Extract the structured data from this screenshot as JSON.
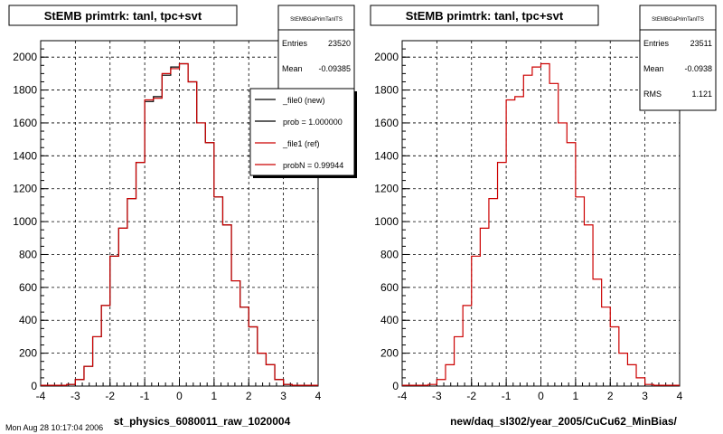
{
  "footer_text": "Mon Aug 28 10:17:04 2006",
  "chart_data": [
    {
      "type": "bar",
      "title": "StEMB primtrk: tanl, tpc+svt",
      "xlabel": "st_physics_6080011_raw_1020004",
      "ylabel": "",
      "xlim": [
        -4,
        4
      ],
      "ylim": [
        0,
        2100
      ],
      "grid": true,
      "bin_width": 0.25,
      "bin_edges_start": -4,
      "xticks": [
        "-4",
        "-3",
        "-2",
        "-1",
        "0",
        "1",
        "2",
        "3",
        "4"
      ],
      "yticks": [
        "0",
        "200",
        "400",
        "600",
        "800",
        "1000",
        "1200",
        "1400",
        "1600",
        "1800",
        "2000"
      ],
      "series": [
        {
          "name": "_file0 (new)",
          "color": "#000000",
          "values": [
            5,
            5,
            5,
            10,
            40,
            120,
            300,
            490,
            790,
            960,
            1140,
            1360,
            1730,
            1760,
            1890,
            1940,
            1960,
            1850,
            1600,
            1480,
            1150,
            980,
            640,
            480,
            360,
            200,
            130,
            40,
            10,
            5,
            5,
            5
          ]
        },
        {
          "name": "_file1 (ref)",
          "color": "#cc0000",
          "values": [
            5,
            5,
            5,
            10,
            40,
            120,
            300,
            490,
            790,
            960,
            1140,
            1360,
            1740,
            1750,
            1900,
            1930,
            1960,
            1850,
            1600,
            1480,
            1150,
            980,
            640,
            480,
            360,
            200,
            130,
            40,
            10,
            5,
            5,
            5
          ]
        }
      ],
      "stats": {
        "name": "StEMBGaPrimTanlTS",
        "entries_label": "Entries",
        "entries": "23520",
        "mean_label": "Mean",
        "mean": "-0.09385"
      },
      "legend": {
        "placement": "top-right",
        "entries": [
          {
            "label": "_file0 (new)",
            "color": "#000000"
          },
          {
            "label": "prob = 1.000000",
            "color": "#000000"
          },
          {
            "label": "_file1 (ref)",
            "color": "#cc0000"
          },
          {
            "label": "probN = 0.99944",
            "color": "#cc0000"
          }
        ]
      }
    },
    {
      "type": "bar",
      "title": "StEMB primtrk: tanl, tpc+svt",
      "xlabel": "new/daq_sl302/year_2005/CuCu62_MinBias/",
      "ylabel": "",
      "xlim": [
        -4,
        4
      ],
      "ylim": [
        0,
        2100
      ],
      "grid": true,
      "bin_width": 0.25,
      "bin_edges_start": -4,
      "xticks": [
        "-4",
        "-3",
        "-2",
        "-1",
        "0",
        "1",
        "2",
        "3",
        "4"
      ],
      "yticks": [
        "0",
        "200",
        "400",
        "600",
        "800",
        "1000",
        "1200",
        "1400",
        "1600",
        "1800",
        "2000"
      ],
      "series": [
        {
          "name": "",
          "color": "#cc0000",
          "values": [
            5,
            5,
            5,
            10,
            40,
            130,
            300,
            490,
            790,
            960,
            1140,
            1360,
            1740,
            1760,
            1890,
            1940,
            1960,
            1840,
            1600,
            1480,
            1150,
            980,
            650,
            480,
            360,
            200,
            130,
            50,
            10,
            5,
            5,
            5
          ]
        }
      ],
      "stats": {
        "name": "StEMBGaPrimTanlTS",
        "entries_label": "Entries",
        "entries": "23511",
        "mean_label": "Mean",
        "mean": "-0.0938",
        "rms_label": "RMS",
        "rms": "1.121"
      }
    }
  ]
}
